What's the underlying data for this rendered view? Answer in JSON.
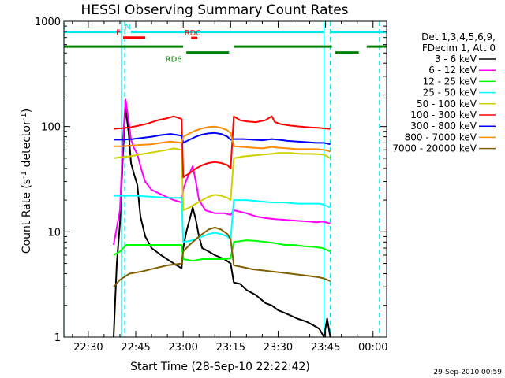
{
  "chart_data": {
    "type": "line",
    "title": "HESSI Observing Summary Count Rates",
    "xlabel": "Start Time (28-Sep-10 22:22:42)",
    "ylabel_main": "Count Rate (s",
    "ylabel_sup1": "-1",
    "ylabel_mid": " detector",
    "ylabel_sup2": "-1",
    "ylabel_end": ")",
    "timestamp": "29-Sep-2010 00:59",
    "y_scale": "log",
    "ylim": [
      1,
      1000
    ],
    "xlim_minutes": [
      -7.7,
      94.3
    ],
    "x_ticks": [
      {
        "label": "22:30",
        "m": 0
      },
      {
        "label": "22:45",
        "m": 15
      },
      {
        "label": "23:00",
        "m": 30
      },
      {
        "label": "23:15",
        "m": 45
      },
      {
        "label": "23:30",
        "m": 60
      },
      {
        "label": "23:45",
        "m": 75
      },
      {
        "label": "00:00",
        "m": 90
      }
    ],
    "y_ticks": [
      {
        "label": "1",
        "v": 1
      },
      {
        "label": "10",
        "v": 10
      },
      {
        "label": "100",
        "v": 100
      },
      {
        "label": "1000",
        "v": 1000
      }
    ],
    "legend": {
      "header": [
        "Det 1,3,4,5,6,9,",
        "FDecim 1, Att 0"
      ],
      "placement": "right"
    },
    "series": [
      {
        "name": "3 - 6 keV",
        "color": "#000000",
        "points": [
          [
            8,
            1
          ],
          [
            9,
            5
          ],
          [
            10,
            12
          ],
          [
            11,
            60
          ],
          [
            11.8,
            150
          ],
          [
            12.8,
            85
          ],
          [
            13.5,
            45
          ],
          [
            14.5,
            35
          ],
          [
            15.5,
            28
          ],
          [
            16.5,
            14
          ],
          [
            18,
            9
          ],
          [
            20,
            7
          ],
          [
            23,
            6
          ],
          [
            27,
            5
          ],
          [
            29.5,
            4.5
          ],
          [
            30,
            7
          ],
          [
            31,
            10
          ],
          [
            32,
            13
          ],
          [
            33,
            17
          ],
          [
            34,
            13
          ],
          [
            35,
            9
          ],
          [
            36,
            7
          ],
          [
            38,
            6.5
          ],
          [
            40,
            6
          ],
          [
            43,
            5.5
          ],
          [
            45,
            5
          ],
          [
            46,
            3.3
          ],
          [
            48,
            3.2
          ],
          [
            50,
            2.8
          ],
          [
            53,
            2.5
          ],
          [
            56,
            2.1
          ],
          [
            58,
            2
          ],
          [
            60,
            1.8
          ],
          [
            62,
            1.7
          ],
          [
            64,
            1.6
          ],
          [
            66,
            1.5
          ],
          [
            69,
            1.4
          ],
          [
            71,
            1.3
          ],
          [
            73,
            1.2
          ],
          [
            74.5,
            1
          ],
          [
            75.5,
            1.5
          ],
          [
            76.5,
            1
          ]
        ]
      },
      {
        "name": "6 - 12 keV",
        "color": "#ff00ff",
        "points": [
          [
            8,
            7.5
          ],
          [
            10,
            16
          ],
          [
            11,
            80
          ],
          [
            11.8,
            180
          ],
          [
            12.8,
            110
          ],
          [
            13.5,
            75
          ],
          [
            14.5,
            62
          ],
          [
            15.5,
            55
          ],
          [
            16.5,
            42
          ],
          [
            17.5,
            33
          ],
          [
            18,
            30
          ],
          [
            20,
            25
          ],
          [
            24,
            22
          ],
          [
            27,
            20
          ],
          [
            29.5,
            19
          ],
          [
            30,
            25
          ],
          [
            31,
            31
          ],
          [
            32,
            36
          ],
          [
            33,
            42
          ],
          [
            34,
            30
          ],
          [
            35,
            20
          ],
          [
            37,
            16
          ],
          [
            40,
            15
          ],
          [
            43,
            15
          ],
          [
            45,
            14.5
          ],
          [
            46,
            16
          ],
          [
            50,
            15
          ],
          [
            53,
            14
          ],
          [
            56,
            13.5
          ],
          [
            59,
            13.2
          ],
          [
            62,
            13
          ],
          [
            65,
            12.8
          ],
          [
            68,
            12.6
          ],
          [
            70,
            12.5
          ],
          [
            72,
            12.3
          ],
          [
            74,
            12.5
          ],
          [
            76.5,
            12
          ]
        ]
      },
      {
        "name": "12 - 25 keV",
        "color": "#00ff00",
        "points": [
          [
            8,
            6
          ],
          [
            10,
            6.5
          ],
          [
            12,
            7.5
          ],
          [
            15,
            7.5
          ],
          [
            18,
            7.5
          ],
          [
            22,
            7.5
          ],
          [
            26,
            7.5
          ],
          [
            29.5,
            7.5
          ],
          [
            30,
            5.5
          ],
          [
            33,
            5.3
          ],
          [
            36,
            5.5
          ],
          [
            40,
            5.5
          ],
          [
            43,
            5.5
          ],
          [
            45,
            5.6
          ],
          [
            46,
            8
          ],
          [
            50,
            8.3
          ],
          [
            53,
            8.2
          ],
          [
            56,
            8
          ],
          [
            59,
            7.8
          ],
          [
            62,
            7.5
          ],
          [
            65,
            7.5
          ],
          [
            68,
            7.3
          ],
          [
            71,
            7.2
          ],
          [
            74,
            7
          ],
          [
            76.5,
            6.5
          ]
        ]
      },
      {
        "name": "25 - 50 keV",
        "color": "#00ffff",
        "points": [
          [
            8,
            22
          ],
          [
            11,
            22
          ],
          [
            15,
            22
          ],
          [
            20,
            21.5
          ],
          [
            25,
            21
          ],
          [
            29.5,
            21
          ],
          [
            30,
            8
          ],
          [
            32,
            8.2
          ],
          [
            34,
            8.5
          ],
          [
            36,
            9
          ],
          [
            38,
            9.5
          ],
          [
            40,
            9.8
          ],
          [
            42,
            9.5
          ],
          [
            44,
            9
          ],
          [
            45,
            8.5
          ],
          [
            46,
            20
          ],
          [
            50,
            20
          ],
          [
            54,
            19.5
          ],
          [
            58,
            19
          ],
          [
            62,
            19
          ],
          [
            66,
            18.5
          ],
          [
            70,
            18.5
          ],
          [
            73,
            18.5
          ],
          [
            74.5,
            18
          ],
          [
            76.5,
            17
          ]
        ]
      },
      {
        "name": "50 - 100 keV",
        "color": "#d0d000",
        "points": [
          [
            8,
            50
          ],
          [
            10,
            51
          ],
          [
            13,
            52
          ],
          [
            16,
            54
          ],
          [
            19,
            56
          ],
          [
            22,
            58
          ],
          [
            25,
            60
          ],
          [
            27,
            62
          ],
          [
            29.5,
            60
          ],
          [
            30,
            16
          ],
          [
            32,
            17
          ],
          [
            34,
            18.5
          ],
          [
            36,
            20
          ],
          [
            38,
            21.5
          ],
          [
            40,
            22.5
          ],
          [
            42,
            22
          ],
          [
            44,
            21
          ],
          [
            45,
            20
          ],
          [
            46,
            50
          ],
          [
            49,
            52
          ],
          [
            52,
            53
          ],
          [
            55,
            54
          ],
          [
            58,
            55
          ],
          [
            60,
            56
          ],
          [
            62,
            56
          ],
          [
            64,
            56
          ],
          [
            67,
            55
          ],
          [
            70,
            55
          ],
          [
            73,
            54.5
          ],
          [
            74.5,
            54
          ],
          [
            76.5,
            50
          ]
        ]
      },
      {
        "name": "100 - 300 keV",
        "color": "#ff0000",
        "points": [
          [
            8,
            95
          ],
          [
            10,
            96
          ],
          [
            13,
            98
          ],
          [
            16,
            102
          ],
          [
            19,
            107
          ],
          [
            22,
            115
          ],
          [
            25,
            120
          ],
          [
            27,
            125
          ],
          [
            29.5,
            118
          ],
          [
            30,
            33
          ],
          [
            32,
            36
          ],
          [
            34,
            40
          ],
          [
            36,
            43
          ],
          [
            38,
            45
          ],
          [
            40,
            46
          ],
          [
            42,
            45
          ],
          [
            44,
            43
          ],
          [
            45,
            40
          ],
          [
            46,
            125
          ],
          [
            48,
            115
          ],
          [
            50,
            112
          ],
          [
            53,
            110
          ],
          [
            56,
            115
          ],
          [
            58,
            125
          ],
          [
            59,
            110
          ],
          [
            61,
            105
          ],
          [
            64,
            102
          ],
          [
            67,
            100
          ],
          [
            70,
            98
          ],
          [
            73,
            97
          ],
          [
            74.5,
            96
          ],
          [
            76.5,
            95
          ]
        ]
      },
      {
        "name": "300 - 800 keV",
        "color": "#0000ff",
        "points": [
          [
            8,
            75
          ],
          [
            11,
            75
          ],
          [
            14,
            76
          ],
          [
            17,
            78
          ],
          [
            20,
            80
          ],
          [
            23,
            83
          ],
          [
            26,
            85
          ],
          [
            29.5,
            82
          ],
          [
            30,
            70
          ],
          [
            32,
            75
          ],
          [
            34,
            80
          ],
          [
            36,
            84
          ],
          [
            38,
            86
          ],
          [
            40,
            87
          ],
          [
            42,
            85
          ],
          [
            44,
            80
          ],
          [
            45,
            75
          ],
          [
            46,
            76
          ],
          [
            49,
            76
          ],
          [
            52,
            75
          ],
          [
            55,
            74
          ],
          [
            58,
            76
          ],
          [
            60,
            75
          ],
          [
            63,
            73
          ],
          [
            66,
            72
          ],
          [
            69,
            71
          ],
          [
            72,
            70
          ],
          [
            74.5,
            70
          ],
          [
            76.5,
            68
          ]
        ]
      },
      {
        "name": "800 - 7000 keV",
        "color": "#ff8c00",
        "points": [
          [
            8,
            65
          ],
          [
            11,
            65
          ],
          [
            14,
            66
          ],
          [
            17,
            67
          ],
          [
            20,
            68
          ],
          [
            23,
            70
          ],
          [
            26,
            72
          ],
          [
            29.5,
            70
          ],
          [
            30,
            80
          ],
          [
            32,
            86
          ],
          [
            34,
            92
          ],
          [
            36,
            96
          ],
          [
            38,
            99
          ],
          [
            40,
            100
          ],
          [
            42,
            97
          ],
          [
            44,
            92
          ],
          [
            45,
            87
          ],
          [
            46,
            65
          ],
          [
            49,
            64
          ],
          [
            52,
            63
          ],
          [
            55,
            62
          ],
          [
            58,
            64
          ],
          [
            60,
            63
          ],
          [
            63,
            62
          ],
          [
            66,
            61
          ],
          [
            69,
            61
          ],
          [
            72,
            61
          ],
          [
            74.5,
            60
          ],
          [
            76.5,
            58
          ]
        ]
      },
      {
        "name": "7000 - 20000 keV",
        "color": "#806000",
        "points": [
          [
            8,
            3
          ],
          [
            10,
            3.5
          ],
          [
            13,
            4
          ],
          [
            17,
            4.2
          ],
          [
            21,
            4.5
          ],
          [
            25,
            4.8
          ],
          [
            29.5,
            5
          ],
          [
            30,
            6.5
          ],
          [
            32,
            7.5
          ],
          [
            34,
            8.5
          ],
          [
            36,
            9.5
          ],
          [
            38,
            10.5
          ],
          [
            40,
            11
          ],
          [
            42,
            10.5
          ],
          [
            44,
            9.5
          ],
          [
            45,
            8.5
          ],
          [
            46,
            4.8
          ],
          [
            49,
            4.6
          ],
          [
            52,
            4.4
          ],
          [
            55,
            4.3
          ],
          [
            58,
            4.2
          ],
          [
            61,
            4.1
          ],
          [
            64,
            4
          ],
          [
            67,
            3.9
          ],
          [
            70,
            3.8
          ],
          [
            73,
            3.7
          ],
          [
            74.5,
            3.6
          ],
          [
            76.5,
            3.4
          ]
        ]
      }
    ],
    "flags": [
      {
        "label": "N",
        "color": "#00e8e8",
        "row_v": 790,
        "label_at": 12.5,
        "segments": [
          [
            -7.7,
            10.5
          ],
          [
            13.5,
            74.5
          ],
          [
            76.5,
            94.3
          ]
        ]
      },
      {
        "label": "F",
        "color": "#ff0000",
        "row_v": 700,
        "label_at": 9.5,
        "segments": [
          [
            11,
            18
          ]
        ]
      },
      {
        "label": "RD0",
        "color": "#ff0000",
        "row_v": 695,
        "label_at": 33,
        "segments": [
          [
            32.5,
            34.5
          ]
        ]
      },
      {
        "label": "",
        "color": "#008000",
        "row_v": 575,
        "label_at": null,
        "segments": [
          [
            -7.7,
            30
          ],
          [
            46,
            77
          ],
          [
            88,
            94.3
          ]
        ]
      },
      {
        "label": "RD6",
        "color": "#008000",
        "row_v": 505,
        "label_at": 27,
        "segments": [
          [
            31,
            44.5
          ],
          [
            78,
            85.5
          ]
        ]
      }
    ],
    "night_boundaries": [
      {
        "m": 10.5,
        "style": "solid",
        "color": "#00e8e8"
      },
      {
        "m": 11.5,
        "style": "dashed",
        "color": "#00e8e8"
      },
      {
        "m": 74.5,
        "style": "solid",
        "color": "#00e8e8"
      },
      {
        "m": 76.5,
        "style": "dashed",
        "color": "#00e8e8"
      },
      {
        "m": -7.7,
        "style": "solid",
        "color": "#00e8e8"
      },
      {
        "m": 92,
        "style": "dashed",
        "color": "#00e8e8"
      }
    ]
  }
}
